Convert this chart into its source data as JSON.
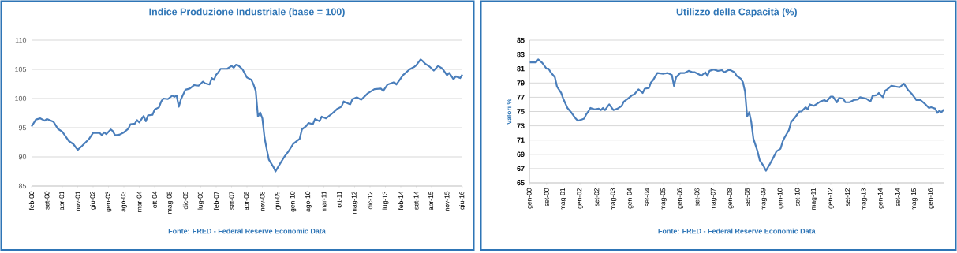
{
  "chart_data": [
    {
      "type": "line",
      "title": "Indice Produzione Industriale (base = 100)",
      "annotations": [
        "Fonte: FRED  - Federal Reserve Economic  Data"
      ],
      "color": "#4a7ebb",
      "grid": "y",
      "xlim": [
        "2000-02",
        "2016-06"
      ],
      "ylim": [
        85,
        110
      ],
      "yticks": [
        85,
        90,
        95,
        100,
        105,
        110
      ],
      "xticks": [
        {
          "value": "2000-02",
          "label": "feb-00"
        },
        {
          "value": "2000-09",
          "label": "set-00"
        },
        {
          "value": "2001-04",
          "label": "apr-01"
        },
        {
          "value": "2001-11",
          "label": "nov-01"
        },
        {
          "value": "2002-06",
          "label": "giu-02"
        },
        {
          "value": "2003-01",
          "label": "gen-03"
        },
        {
          "value": "2003-08",
          "label": "ago-03"
        },
        {
          "value": "2004-03",
          "label": "mar-04"
        },
        {
          "value": "2004-10",
          "label": "ott-04"
        },
        {
          "value": "2005-05",
          "label": "mag-05"
        },
        {
          "value": "2005-12",
          "label": "dic-05"
        },
        {
          "value": "2006-07",
          "label": "lug-06"
        },
        {
          "value": "2007-02",
          "label": "feb-07"
        },
        {
          "value": "2007-09",
          "label": "set-07"
        },
        {
          "value": "2008-04",
          "label": "apr-08"
        },
        {
          "value": "2008-11",
          "label": "nov-08"
        },
        {
          "value": "2009-06",
          "label": "giu-09"
        },
        {
          "value": "2010-01",
          "label": "gen-10"
        },
        {
          "value": "2010-08",
          "label": "ago-10"
        },
        {
          "value": "2011-03",
          "label": "mar-11"
        },
        {
          "value": "2011-10",
          "label": "ott-11"
        },
        {
          "value": "2012-05",
          "label": "mag-12"
        },
        {
          "value": "2012-12",
          "label": "dic-12"
        },
        {
          "value": "2013-07",
          "label": "lug-13"
        },
        {
          "value": "2014-02",
          "label": "feb-14"
        },
        {
          "value": "2014-09",
          "label": "set-14"
        },
        {
          "value": "2015-04",
          "label": "apr-15"
        },
        {
          "value": "2015-11",
          "label": "nov-15"
        },
        {
          "value": "2016-06",
          "label": "giu-16"
        }
      ],
      "x": [
        "2000-02",
        "2000-04",
        "2000-06",
        "2000-08",
        "2000-09",
        "2000-12",
        "2001-02",
        "2001-04",
        "2001-07",
        "2001-09",
        "2001-11",
        "2002-01",
        "2002-04",
        "2002-06",
        "2002-09",
        "2002-10",
        "2002-11",
        "2002-12",
        "2003-02",
        "2003-03",
        "2003-04",
        "2003-06",
        "2003-08",
        "2003-10",
        "2003-11",
        "2004-01",
        "2004-02",
        "2004-03",
        "2004-05",
        "2004-06",
        "2004-07",
        "2004-09",
        "2004-10",
        "2004-12",
        "2005-01",
        "2005-02",
        "2005-04",
        "2005-06",
        "2005-07",
        "2005-08",
        "2005-09",
        "2005-10",
        "2005-12",
        "2006-02",
        "2006-03",
        "2006-04",
        "2006-06",
        "2006-08",
        "2006-09",
        "2006-11",
        "2006-12",
        "2007-01",
        "2007-02",
        "2007-03",
        "2007-04",
        "2007-07",
        "2007-09",
        "2007-10",
        "2007-11",
        "2007-12",
        "2008-02",
        "2008-04",
        "2008-06",
        "2008-07",
        "2008-08",
        "2008-09",
        "2008-10",
        "2008-11",
        "2008-12",
        "2009-01",
        "2009-02",
        "2009-04",
        "2009-05",
        "2009-07",
        "2009-09",
        "2009-11",
        "2010-01",
        "2010-04",
        "2010-05",
        "2010-07",
        "2010-08",
        "2010-10",
        "2010-11",
        "2011-01",
        "2011-02",
        "2011-04",
        "2011-07",
        "2011-09",
        "2011-11",
        "2011-12",
        "2012-03",
        "2012-04",
        "2012-06",
        "2012-08",
        "2012-11",
        "2013-02",
        "2013-05",
        "2013-06",
        "2013-08",
        "2013-11",
        "2013-12",
        "2014-03",
        "2014-06",
        "2014-08",
        "2014-09",
        "2014-11",
        "2014-12",
        "2015-01",
        "2015-03",
        "2015-05",
        "2015-07",
        "2015-09",
        "2015-11",
        "2015-12",
        "2016-02",
        "2016-03",
        "2016-05",
        "2016-06"
      ],
      "values": [
        95.2,
        96.4,
        96.6,
        96.2,
        96.5,
        96.0,
        94.8,
        94.3,
        92.7,
        92.2,
        91.2,
        91.9,
        93.0,
        94.1,
        94.1,
        93.7,
        94.2,
        93.9,
        94.7,
        94.4,
        93.7,
        93.8,
        94.2,
        94.8,
        95.6,
        95.7,
        96.3,
        95.9,
        97.0,
        96.1,
        97.1,
        97.2,
        98.1,
        98.5,
        99.5,
        100.0,
        99.9,
        100.5,
        100.3,
        100.5,
        98.6,
        99.9,
        101.5,
        101.7,
        102.0,
        102.3,
        102.2,
        102.9,
        102.6,
        102.4,
        103.5,
        103.2,
        104.1,
        104.5,
        105.1,
        105.1,
        105.6,
        105.3,
        105.8,
        105.7,
        105.0,
        103.6,
        103.2,
        102.4,
        101.3,
        96.9,
        97.6,
        96.6,
        93.3,
        91.3,
        89.5,
        88.3,
        87.5,
        88.8,
        90.0,
        91.0,
        92.2,
        93.1,
        94.7,
        95.3,
        95.8,
        95.6,
        96.5,
        96.1,
        96.9,
        96.6,
        97.5,
        98.2,
        98.6,
        99.5,
        99.0,
        99.9,
        100.2,
        99.8,
        100.9,
        101.6,
        101.7,
        101.3,
        102.4,
        102.8,
        102.4,
        104.0,
        105.0,
        105.4,
        105.7,
        106.7,
        106.4,
        106.0,
        105.5,
        104.8,
        105.6,
        105.1,
        104.0,
        104.4,
        103.3,
        103.8,
        103.5,
        104.1
      ]
    },
    {
      "type": "line",
      "title": "Utilizzo della Capacità (%)",
      "ylabel": "Valori %",
      "annotations": [
        "Fonte: FRED  - Federal Reserve Economic  Data"
      ],
      "color": "#4a7ebb",
      "grid": "y",
      "xlim": [
        "2000-01",
        "2016-07"
      ],
      "ylim": [
        65,
        85
      ],
      "yticks": [
        65,
        67,
        69,
        71,
        73,
        75,
        77,
        79,
        81,
        83,
        85
      ],
      "xticks": [
        {
          "value": "2000-01",
          "label": "gen-00"
        },
        {
          "value": "2000-09",
          "label": "set-00"
        },
        {
          "value": "2001-05",
          "label": "mag-01"
        },
        {
          "value": "2002-01",
          "label": "gen-02"
        },
        {
          "value": "2002-09",
          "label": "set-02"
        },
        {
          "value": "2003-05",
          "label": "mag-03"
        },
        {
          "value": "2004-01",
          "label": "gen-04"
        },
        {
          "value": "2004-09",
          "label": "set-04"
        },
        {
          "value": "2005-05",
          "label": "mag-05"
        },
        {
          "value": "2006-01",
          "label": "gen-06"
        },
        {
          "value": "2006-09",
          "label": "set-06"
        },
        {
          "value": "2007-05",
          "label": "mag-07"
        },
        {
          "value": "2008-01",
          "label": "gen-08"
        },
        {
          "value": "2008-09",
          "label": "set-08"
        },
        {
          "value": "2009-05",
          "label": "mag-09"
        },
        {
          "value": "2010-01",
          "label": "gen-10"
        },
        {
          "value": "2010-09",
          "label": "set-10"
        },
        {
          "value": "2011-05",
          "label": "mag-11"
        },
        {
          "value": "2012-01",
          "label": "gen-12"
        },
        {
          "value": "2012-09",
          "label": "set-12"
        },
        {
          "value": "2013-05",
          "label": "mag-13"
        },
        {
          "value": "2014-01",
          "label": "gen-14"
        },
        {
          "value": "2014-09",
          "label": "set-14"
        },
        {
          "value": "2015-05",
          "label": "mag-15"
        },
        {
          "value": "2016-01",
          "label": "gen-16"
        }
      ],
      "x": [
        "2000-01",
        "2000-04",
        "2000-05",
        "2000-07",
        "2000-09",
        "2000-10",
        "2000-11",
        "2001-01",
        "2001-02",
        "2001-04",
        "2001-05",
        "2001-07",
        "2001-09",
        "2001-11",
        "2001-12",
        "2002-02",
        "2002-03",
        "2002-04",
        "2002-05",
        "2002-06",
        "2002-08",
        "2002-10",
        "2002-11",
        "2002-12",
        "2003-01",
        "2003-03",
        "2003-05",
        "2003-07",
        "2003-09",
        "2003-10",
        "2003-12",
        "2004-02",
        "2004-03",
        "2004-05",
        "2004-07",
        "2004-08",
        "2004-10",
        "2004-11",
        "2004-12",
        "2005-02",
        "2005-05",
        "2005-07",
        "2005-09",
        "2005-10",
        "2005-11",
        "2006-01",
        "2006-03",
        "2006-05",
        "2006-07",
        "2006-08",
        "2006-10",
        "2006-11",
        "2007-01",
        "2007-02",
        "2007-03",
        "2007-05",
        "2007-07",
        "2007-09",
        "2007-10",
        "2007-12",
        "2008-01",
        "2008-03",
        "2008-04",
        "2008-06",
        "2008-07",
        "2008-08",
        "2008-09",
        "2008-10",
        "2008-11",
        "2008-12",
        "2009-02",
        "2009-03",
        "2009-05",
        "2009-06",
        "2009-08",
        "2009-10",
        "2009-11",
        "2010-01",
        "2010-02",
        "2010-03",
        "2010-05",
        "2010-06",
        "2010-08",
        "2010-10",
        "2010-11",
        "2011-01",
        "2011-02",
        "2011-03",
        "2011-05",
        "2011-07",
        "2011-08",
        "2011-10",
        "2011-11",
        "2012-01",
        "2012-02",
        "2012-04",
        "2012-05",
        "2012-07",
        "2012-08",
        "2012-10",
        "2012-12",
        "2013-02",
        "2013-03",
        "2013-06",
        "2013-08",
        "2013-09",
        "2013-11",
        "2013-12",
        "2014-02",
        "2014-03",
        "2014-04",
        "2014-06",
        "2014-08",
        "2014-10",
        "2014-12",
        "2015-02",
        "2015-04",
        "2015-06",
        "2015-08",
        "2015-10",
        "2015-12",
        "2016-01",
        "2016-03",
        "2016-04",
        "2016-05",
        "2016-06",
        "2016-07"
      ],
      "values": [
        81.9,
        81.9,
        82.3,
        81.8,
        81.0,
        81.0,
        80.5,
        79.8,
        78.5,
        77.6,
        76.8,
        75.5,
        74.8,
        74.0,
        73.7,
        73.9,
        74.0,
        74.6,
        75.0,
        75.5,
        75.3,
        75.4,
        75.2,
        75.5,
        75.2,
        76.0,
        75.2,
        75.4,
        75.8,
        76.4,
        76.8,
        77.3,
        77.4,
        78.1,
        77.6,
        78.2,
        78.3,
        79.1,
        79.4,
        80.4,
        80.3,
        80.4,
        80.1,
        78.6,
        79.8,
        80.4,
        80.4,
        80.7,
        80.5,
        80.5,
        80.2,
        80.0,
        80.5,
        80.0,
        80.7,
        80.9,
        80.7,
        80.8,
        80.5,
        80.8,
        80.8,
        80.5,
        80.0,
        79.6,
        79.1,
        77.8,
        74.3,
        74.9,
        73.5,
        71.2,
        69.4,
        68.2,
        67.3,
        66.7,
        67.7,
        68.8,
        69.4,
        69.8,
        70.8,
        71.4,
        72.4,
        73.5,
        74.2,
        75.0,
        75.0,
        75.6,
        75.3,
        76.0,
        75.8,
        76.2,
        76.4,
        76.6,
        76.4,
        77.1,
        77.1,
        76.3,
        76.9,
        76.8,
        76.3,
        76.3,
        76.6,
        76.7,
        77.0,
        76.8,
        76.4,
        77.2,
        77.3,
        77.6,
        77.0,
        77.9,
        78.1,
        78.6,
        78.5,
        78.4,
        78.9,
        78.0,
        77.4,
        76.6,
        76.6,
        76.1,
        75.5,
        75.6,
        75.4,
        74.8,
        75.1,
        74.9,
        75.3
      ]
    }
  ]
}
